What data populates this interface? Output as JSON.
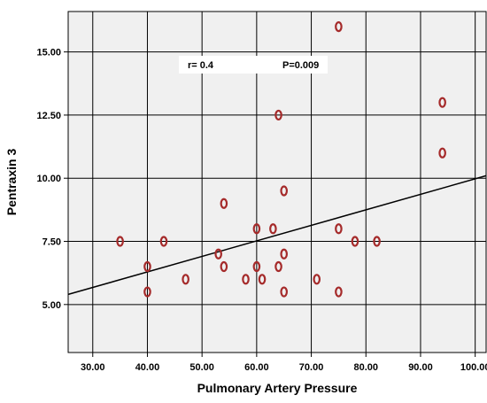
{
  "chart_data": {
    "type": "scatter",
    "title": "",
    "xlabel": "Pulmonary Artery Pressure",
    "ylabel": "Pentraxin 3",
    "xlim": [
      25.5,
      102
    ],
    "ylim": [
      3.1,
      16.6
    ],
    "x_ticks": [
      30,
      40,
      50,
      60,
      70,
      80,
      90,
      100
    ],
    "x_tick_labels": [
      "30.00",
      "40.00",
      "50.00",
      "60.00",
      "70.00",
      "80.00",
      "90.00",
      "100.00"
    ],
    "y_ticks": [
      5,
      7.5,
      10,
      12.5,
      15
    ],
    "y_tick_labels": [
      "5.00",
      "7.50",
      "10.00",
      "12.50",
      "15.00"
    ],
    "points": [
      {
        "x": 35,
        "y": 7.5
      },
      {
        "x": 40,
        "y": 6.5
      },
      {
        "x": 40,
        "y": 5.5
      },
      {
        "x": 43,
        "y": 7.5
      },
      {
        "x": 47,
        "y": 6.0
      },
      {
        "x": 53,
        "y": 7.0
      },
      {
        "x": 54,
        "y": 6.5
      },
      {
        "x": 54,
        "y": 9.0
      },
      {
        "x": 58,
        "y": 6.0
      },
      {
        "x": 60,
        "y": 8.0
      },
      {
        "x": 60,
        "y": 6.5
      },
      {
        "x": 61,
        "y": 6.0
      },
      {
        "x": 63,
        "y": 8.0
      },
      {
        "x": 64,
        "y": 12.5
      },
      {
        "x": 64,
        "y": 6.5
      },
      {
        "x": 65,
        "y": 9.5
      },
      {
        "x": 65,
        "y": 7.0
      },
      {
        "x": 65,
        "y": 5.5
      },
      {
        "x": 71,
        "y": 6.0
      },
      {
        "x": 75,
        "y": 16.0
      },
      {
        "x": 75,
        "y": 8.0
      },
      {
        "x": 75,
        "y": 5.5
      },
      {
        "x": 78,
        "y": 7.5
      },
      {
        "x": 82,
        "y": 7.5
      },
      {
        "x": 94,
        "y": 13.0
      },
      {
        "x": 94,
        "y": 11.0
      }
    ],
    "fit_line": {
      "x": [
        25.5,
        102
      ],
      "y": [
        5.4,
        10.1
      ]
    },
    "annotation": {
      "r_text": "r= 0.4",
      "p_text": "P=0.009"
    },
    "grid": true,
    "legend": "none",
    "colors": {
      "plot_background": "#f0f0f0",
      "marker": "#a52a2a",
      "grid": "#000000",
      "fit_line": "#000000",
      "annotation_box": "#ffffff"
    }
  }
}
